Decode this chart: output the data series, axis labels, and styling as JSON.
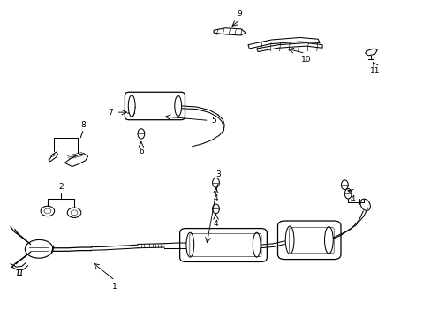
{
  "background_color": "#ffffff",
  "line_color": "#000000",
  "figure_width": 4.89,
  "figure_height": 3.6,
  "dpi": 100,
  "label_positions": {
    "1": [
      0.265,
      0.085,
      0.265,
      0.135
    ],
    "2": [
      0.235,
      0.395,
      0.235,
      0.395
    ],
    "3": [
      0.505,
      0.435,
      0.505,
      0.435
    ],
    "4a": [
      0.5,
      0.415,
      0.5,
      0.445
    ],
    "4b": [
      0.505,
      0.325,
      0.505,
      0.355
    ],
    "4c": [
      0.835,
      0.385,
      0.815,
      0.415
    ],
    "5": [
      0.485,
      0.62,
      0.51,
      0.648
    ],
    "6": [
      0.322,
      0.545,
      0.322,
      0.575
    ],
    "7": [
      0.268,
      0.645,
      0.3,
      0.645
    ],
    "8": [
      0.19,
      0.565,
      0.19,
      0.565
    ],
    "9": [
      0.555,
      0.945,
      0.568,
      0.915
    ],
    "10": [
      0.71,
      0.845,
      0.71,
      0.82
    ],
    "11": [
      0.87,
      0.835,
      0.862,
      0.808
    ]
  }
}
